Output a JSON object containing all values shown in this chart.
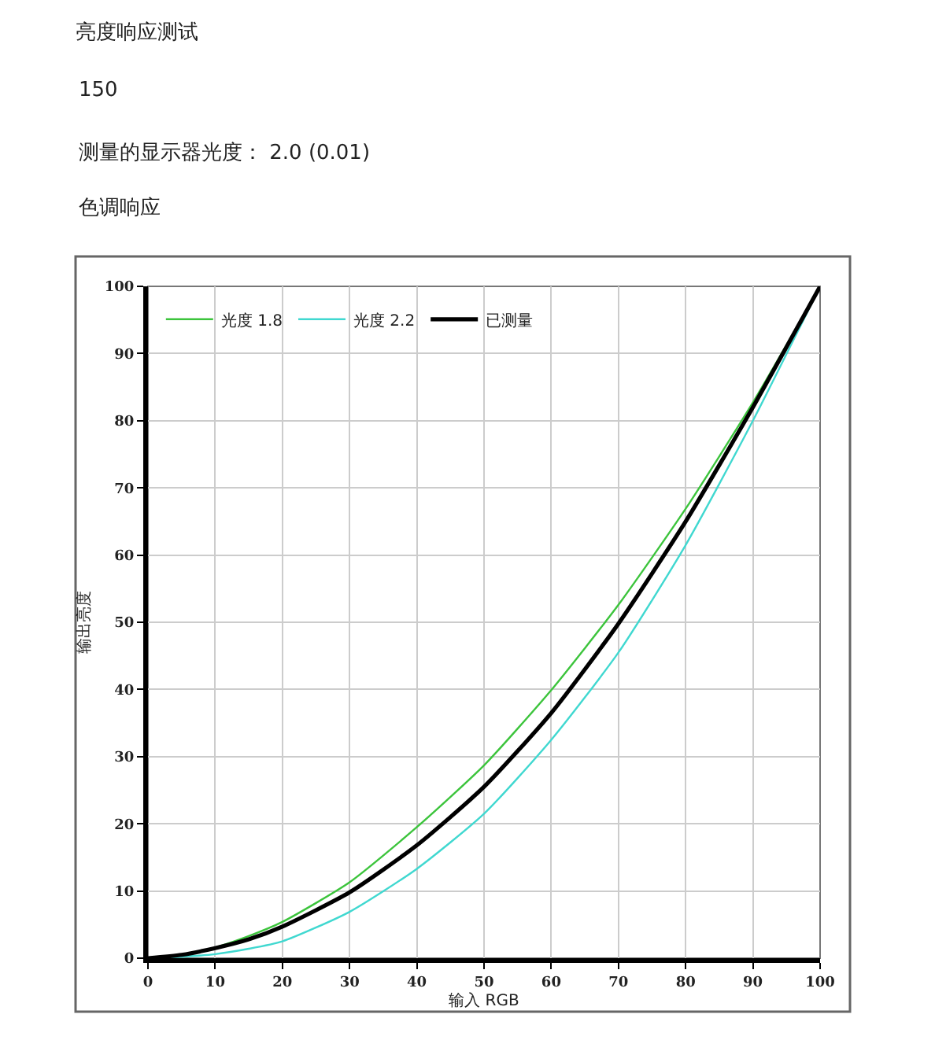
{
  "chart_data": {
    "type": "line",
    "title": "亮度响应测试",
    "annotations": [
      "150",
      "测量的显示器光度： 2.0 (0.01)",
      "色调响应"
    ],
    "xlabel": "输入 RGB",
    "ylabel": "输出亮度",
    "x": [
      0,
      5,
      10,
      15,
      20,
      30,
      40,
      50,
      60,
      70,
      80,
      90,
      100
    ],
    "series": [
      {
        "name": "光度 1.8",
        "color": "#3cc43c",
        "values": [
          0,
          0.5,
          1.6,
          3.3,
          5.4,
          11.3,
          19.5,
          28.7,
          39.9,
          52.6,
          66.9,
          82.7,
          100
        ]
      },
      {
        "name": "光度 2.2",
        "color": "#40d8d0",
        "values": [
          0,
          0.2,
          0.6,
          1.4,
          2.5,
          6.9,
          13.3,
          21.5,
          32.5,
          45.5,
          61.5,
          80,
          100
        ]
      },
      {
        "name": "已测量",
        "color": "#000000",
        "values": [
          0,
          0.5,
          1.5,
          2.8,
          4.7,
          9.8,
          16.8,
          25.5,
          36.5,
          49.8,
          65,
          82,
          100
        ]
      }
    ],
    "xlim": [
      0,
      100
    ],
    "ylim": [
      0,
      100
    ],
    "xticks": [
      0,
      10,
      20,
      30,
      40,
      50,
      60,
      70,
      80,
      90,
      100
    ],
    "yticks": [
      0,
      10,
      20,
      30,
      40,
      50,
      60,
      70,
      80,
      90,
      100
    ],
    "grid": true,
    "legend": "top left",
    "marker": "none",
    "line_style": "solid"
  }
}
